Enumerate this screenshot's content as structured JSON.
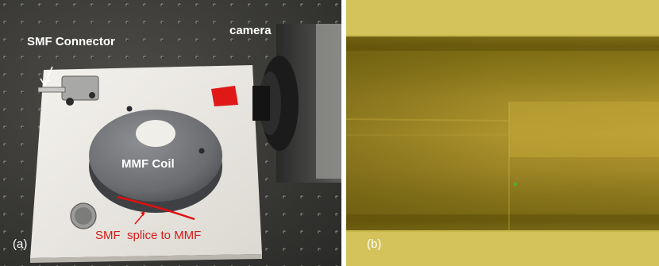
{
  "panel_a": {
    "labels": {
      "smf_connector": "SMF Connector",
      "camera": "camera",
      "mmf_coil": "MMF Coil",
      "splice": "SMF  splice to MMF",
      "tag": "(a)"
    }
  },
  "panel_b": {
    "labels": {
      "tag": "(b)"
    }
  }
}
